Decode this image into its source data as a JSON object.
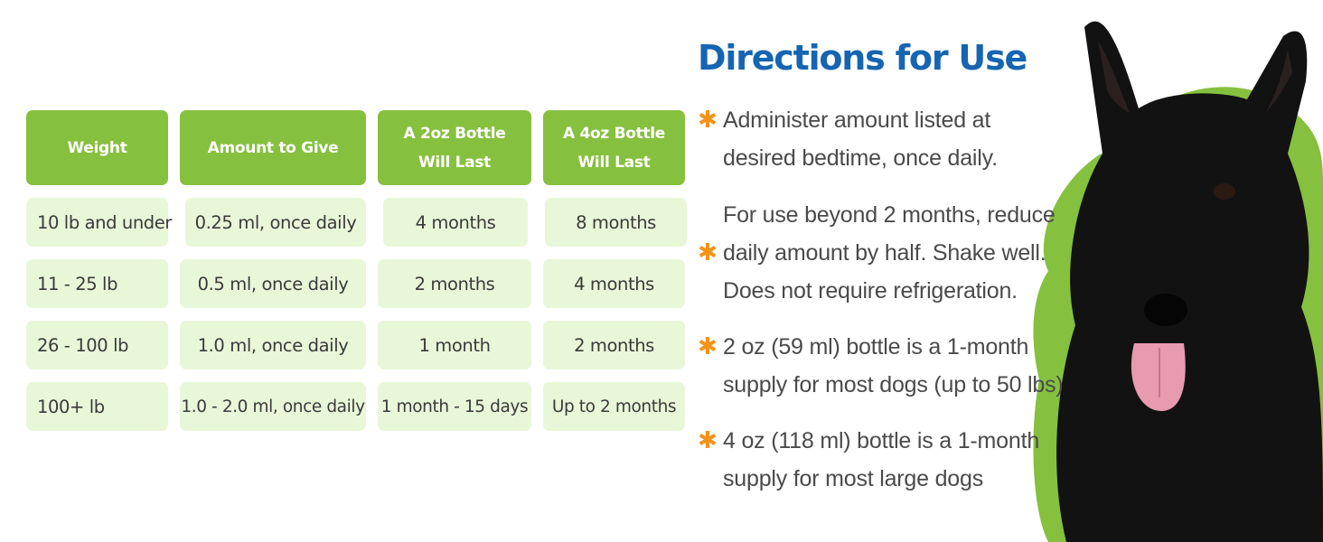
{
  "table": {
    "headers": [
      "Weight",
      "Amount to Give",
      [
        "A 2oz Bottle",
        "Will Last"
      ],
      [
        "A 4oz Bottle",
        "Will Last"
      ]
    ],
    "rows": [
      [
        "10 lb and under",
        "0.25 ml, once daily",
        "4 months",
        "8 months"
      ],
      [
        "11 - 25 lb",
        "0.5 ml, once daily",
        "2 months",
        "4 months"
      ],
      [
        "26 - 100 lb",
        "1.0 ml, once daily",
        "1 month",
        "2 months"
      ],
      [
        "100+ lb",
        "1.0 - 2.0 ml, once daily",
        "1 month - 15 days",
        "Up to 2 months"
      ]
    ]
  },
  "directions": {
    "title": "Directions for Use",
    "items": [
      [
        "Administer amount listed at",
        "desired bedtime, once daily."
      ],
      [
        "For use beyond 2 months, reduce",
        "daily amount by half. Shake well.",
        "Does not require refrigeration."
      ],
      [
        "2 oz (59 ml) bottle is a 1-month",
        "supply for most dogs (up to 50 lbs)"
      ],
      [
        "4 oz (118 ml) bottle is a 1-month",
        "supply for most large dogs"
      ]
    ],
    "bullet_icon": "orange-asterisk-icon"
  },
  "image": {
    "subject": "black scottish terrier dog on green blob",
    "icon": "dog-photo"
  },
  "colors": {
    "header_green": "#86c03f",
    "cell_green": "#e9f7d9",
    "title_blue": "#1565b2",
    "bullet_orange": "#f39318",
    "blob_green": "#86c03f"
  }
}
